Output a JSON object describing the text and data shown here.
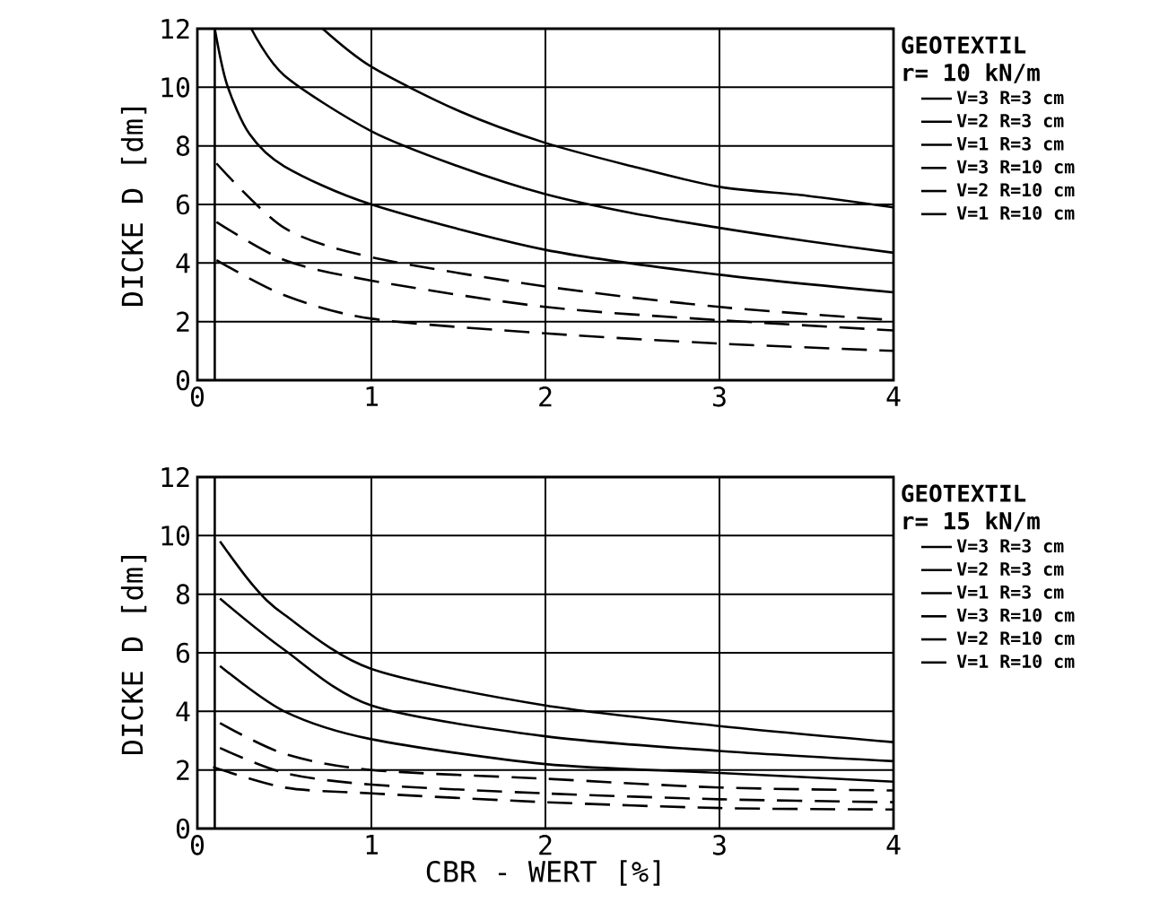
{
  "chart_data": [
    {
      "type": "line",
      "legend_title": "GEOTEXTIL",
      "subtitle": "r= 10 kN/m",
      "ylabel": "DICKE D   [dm]",
      "xlim": [
        0,
        4
      ],
      "ylim": [
        0,
        12
      ],
      "xticks": [
        0,
        1,
        2,
        3,
        4
      ],
      "yticks": [
        0,
        2,
        4,
        6,
        8,
        10,
        12
      ],
      "grid": true,
      "legend": "right",
      "marker": "none",
      "ref_lines": [
        {
          "axis": "x",
          "value": 0.1,
          "color": "#000000"
        }
      ],
      "series": [
        {
          "name": "V=3  R=3 cm",
          "color": "#000000",
          "line_style": "solid",
          "x": [
            0.72,
            1,
            1.5,
            2,
            2.5,
            3,
            3.5,
            4
          ],
          "values": [
            12,
            10.7,
            9.2,
            8.1,
            7.3,
            6.6,
            6.3,
            5.9
          ]
        },
        {
          "name": "V=2  R=3 cm",
          "color": "#000000",
          "line_style": "solid",
          "x": [
            0.31,
            0.5,
            1,
            1.5,
            2,
            2.5,
            3,
            3.5,
            4
          ],
          "values": [
            12,
            10.4,
            8.5,
            7.3,
            6.35,
            5.7,
            5.2,
            4.75,
            4.35
          ]
        },
        {
          "name": "V=1  R=3 cm",
          "color": "#000000",
          "line_style": "solid",
          "x": [
            0.1,
            0.17,
            0.3,
            0.5,
            1,
            2,
            3,
            4
          ],
          "values": [
            12,
            10.1,
            8.4,
            7.3,
            6.0,
            4.45,
            3.6,
            3.0
          ]
        },
        {
          "name": "V=3  R=10 cm",
          "color": "#000000",
          "line_style": "dashed",
          "x": [
            0.11,
            0.5,
            1,
            2,
            3,
            4
          ],
          "values": [
            7.4,
            5.2,
            4.2,
            3.2,
            2.5,
            2.05
          ]
        },
        {
          "name": "V=2  R=10 cm",
          "color": "#000000",
          "line_style": "dashed",
          "x": [
            0.11,
            0.5,
            1,
            2,
            3,
            4
          ],
          "values": [
            5.4,
            4.1,
            3.4,
            2.5,
            2.05,
            1.7
          ]
        },
        {
          "name": "V=1  R=10 cm",
          "color": "#000000",
          "line_style": "dashed",
          "x": [
            0.11,
            0.5,
            1,
            2,
            3,
            4
          ],
          "values": [
            4.1,
            2.9,
            2.1,
            1.6,
            1.25,
            1.0
          ]
        }
      ]
    },
    {
      "type": "line",
      "legend_title": "GEOTEXTIL",
      "subtitle": "r= 15 kN/m",
      "xlabel": "CBR - WERT     [%]",
      "ylabel": "DICKE D   [dm]",
      "xlim": [
        0,
        4
      ],
      "ylim": [
        0,
        12
      ],
      "xticks": [
        0,
        1,
        2,
        3,
        4
      ],
      "yticks": [
        0,
        2,
        4,
        6,
        8,
        10,
        12
      ],
      "grid": true,
      "legend": "right",
      "marker": "none",
      "ref_lines": [
        {
          "axis": "x",
          "value": 0.1,
          "color": "#000000"
        }
      ],
      "series": [
        {
          "name": "V=3  R=3 cm",
          "color": "#000000",
          "line_style": "solid",
          "x": [
            0.13,
            0.32,
            0.5,
            1,
            2,
            3,
            4
          ],
          "values": [
            9.8,
            8.3,
            7.3,
            5.45,
            4.2,
            3.5,
            2.95
          ]
        },
        {
          "name": "V=2  R=3 cm",
          "color": "#000000",
          "line_style": "solid",
          "x": [
            0.13,
            0.5,
            1,
            2,
            3,
            4
          ],
          "values": [
            7.85,
            6.1,
            4.2,
            3.15,
            2.65,
            2.3
          ]
        },
        {
          "name": "V=1  R=3 cm",
          "color": "#000000",
          "line_style": "solid",
          "x": [
            0.13,
            0.5,
            1,
            2,
            3,
            4
          ],
          "values": [
            5.55,
            4.0,
            3.05,
            2.2,
            1.9,
            1.6
          ]
        },
        {
          "name": "V=3  R=10 cm",
          "color": "#000000",
          "line_style": "dashed",
          "x": [
            0.13,
            0.5,
            1,
            2,
            3,
            4
          ],
          "values": [
            3.6,
            2.55,
            2.0,
            1.7,
            1.4,
            1.3
          ]
        },
        {
          "name": "V=2  R=10 cm",
          "color": "#000000",
          "line_style": "dashed",
          "x": [
            0.13,
            0.5,
            1,
            2,
            3,
            4
          ],
          "values": [
            2.75,
            1.9,
            1.5,
            1.2,
            1.0,
            0.9
          ]
        },
        {
          "name": "V=1  R=10 cm",
          "color": "#000000",
          "line_style": "dashed",
          "x": [
            0.09,
            0.5,
            1,
            2,
            3,
            4
          ],
          "values": [
            2.1,
            1.4,
            1.2,
            0.9,
            0.7,
            0.65
          ]
        }
      ]
    }
  ]
}
